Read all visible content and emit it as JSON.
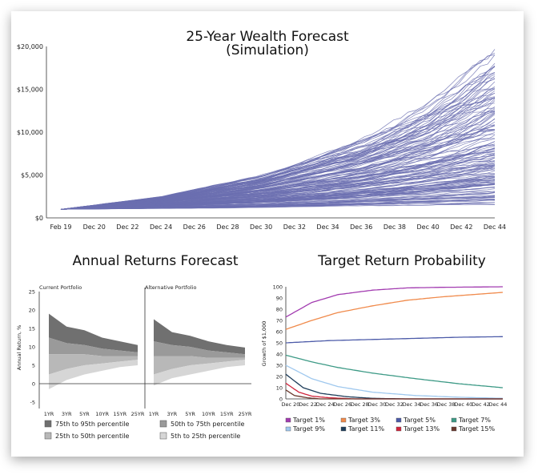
{
  "chart_data": [
    {
      "type": "line",
      "title": "25-Year Wealth Forecast",
      "subtitle": "(Simulation)",
      "x_ticks": [
        "Feb 19",
        "Dec 20",
        "Dec 22",
        "Dec 24",
        "Dec 26",
        "Dec 28",
        "Dec 30",
        "Dec 32",
        "Dec 34",
        "Dec 36",
        "Dec 38",
        "Dec 40",
        "Dec 42",
        "Dec 44"
      ],
      "y_ticks": [
        "$0",
        "$5,000",
        "$10,000",
        "$15,000",
        "$20,000"
      ],
      "ylim": [
        0,
        20000
      ],
      "series_color": "#6b6fb0",
      "simulation_paths": 150,
      "start_value": 1000,
      "envelope": {
        "x": [
          "Feb 19",
          "Dec 24",
          "Dec 30",
          "Dec 36",
          "Dec 40",
          "Dec 44"
        ],
        "upper": [
          1000,
          2500,
          5000,
          9000,
          13000,
          19000
        ],
        "median": [
          1000,
          1900,
          3000,
          4700,
          6200,
          8000
        ],
        "lower": [
          1000,
          1100,
          1200,
          1400,
          1500,
          1600
        ]
      }
    },
    {
      "type": "area",
      "title": "Annual Returns Forecast",
      "ylabel": "Annual Return, %",
      "ylim": [
        -5,
        25
      ],
      "y_ticks": [
        "25",
        "20",
        "15",
        "10",
        "5",
        "0",
        "-5"
      ],
      "panels": [
        "Current Portfolio",
        "Alternative Portfolio"
      ],
      "categories": [
        "1YR",
        "3YR",
        "5YR",
        "10YR",
        "15YR",
        "25YR"
      ],
      "series": [
        {
          "name": "75th to 95th percentile",
          "color": "#707070",
          "current": [
            [
              12.5,
              19
            ],
            [
              11,
              15.5
            ],
            [
              10.5,
              14.5
            ],
            [
              9.5,
              12.5
            ],
            [
              9,
              11.5
            ],
            [
              8.5,
              10.5
            ]
          ],
          "alternative": [
            [
              11.5,
              17.5
            ],
            [
              10.5,
              14
            ],
            [
              10,
              13
            ],
            [
              9,
              11.5
            ],
            [
              8.5,
              10.5
            ],
            [
              8,
              9.8
            ]
          ]
        },
        {
          "name": "50th to 75th percentile",
          "color": "#9a9a9a",
          "current": [
            [
              8,
              12.5
            ],
            [
              8,
              11
            ],
            [
              8,
              10.5
            ],
            [
              7.5,
              9.5
            ],
            [
              7.5,
              9
            ],
            [
              7.5,
              8.5
            ]
          ],
          "alternative": [
            [
              7.5,
              11.5
            ],
            [
              7.5,
              10.5
            ],
            [
              7.5,
              10
            ],
            [
              7,
              9
            ],
            [
              7,
              8.5
            ],
            [
              7,
              8
            ]
          ]
        },
        {
          "name": "25th to 50th percentile",
          "color": "#b8b8b8",
          "current": [
            [
              2.5,
              8
            ],
            [
              4,
              8
            ],
            [
              5,
              8
            ],
            [
              5.5,
              7.5
            ],
            [
              6,
              7.5
            ],
            [
              6.5,
              7.5
            ]
          ],
          "alternative": [
            [
              2.5,
              7.5
            ],
            [
              4,
              7.5
            ],
            [
              5,
              7.5
            ],
            [
              5.5,
              7
            ],
            [
              6,
              7
            ],
            [
              6.5,
              7
            ]
          ]
        },
        {
          "name": "5th to 25th percentile",
          "color": "#d6d6d6",
          "current": [
            [
              -1.5,
              2.5
            ],
            [
              1,
              4
            ],
            [
              2.5,
              5
            ],
            [
              3.5,
              5.5
            ],
            [
              4.5,
              6
            ],
            [
              5,
              6.5
            ]
          ],
          "alternative": [
            [
              -0.5,
              2.5
            ],
            [
              1.5,
              4
            ],
            [
              2.5,
              5
            ],
            [
              3.5,
              5.5
            ],
            [
              4.5,
              6
            ],
            [
              5,
              6.5
            ]
          ]
        }
      ]
    },
    {
      "type": "line",
      "title": "Target Return Probability",
      "ylabel": "Growth of $1,000",
      "ylim": [
        0,
        100
      ],
      "y_ticks": [
        "0",
        "10",
        "20",
        "30",
        "40",
        "50",
        "60",
        "70",
        "80",
        "90",
        "100"
      ],
      "x_ticks": [
        "Dec 20",
        "Dec 22",
        "Dec 24",
        "Dec 26",
        "Dec 28",
        "Dec 30",
        "Dec 32",
        "Dec 34",
        "Dec 36",
        "Dec 38",
        "Dec 40",
        "Dec 42",
        "Dec 44"
      ],
      "series": [
        {
          "name": "Target 1%",
          "color": "#a23bb0",
          "points": [
            [
              0,
              73
            ],
            [
              3,
              86
            ],
            [
              6,
              93
            ],
            [
              10,
              97
            ],
            [
              14,
              99
            ],
            [
              18,
              99.5
            ],
            [
              25,
              100
            ]
          ]
        },
        {
          "name": "Target 3%",
          "color": "#f08a4b",
          "points": [
            [
              0,
              62
            ],
            [
              3,
              70
            ],
            [
              6,
              77
            ],
            [
              10,
              83
            ],
            [
              14,
              88
            ],
            [
              18,
              91
            ],
            [
              25,
              95
            ]
          ]
        },
        {
          "name": "Target 5%",
          "color": "#4b5aa8",
          "points": [
            [
              0,
              50
            ],
            [
              5,
              52
            ],
            [
              10,
              53
            ],
            [
              15,
              54
            ],
            [
              20,
              55
            ],
            [
              25,
              55.5
            ]
          ]
        },
        {
          "name": "Target 7%",
          "color": "#3d9a86",
          "points": [
            [
              0,
              39
            ],
            [
              3,
              33
            ],
            [
              6,
              28
            ],
            [
              10,
              23
            ],
            [
              15,
              18
            ],
            [
              20,
              13.5
            ],
            [
              25,
              10
            ]
          ]
        },
        {
          "name": "Target 9%",
          "color": "#9fc8ee",
          "points": [
            [
              0,
              30
            ],
            [
              3,
              18
            ],
            [
              6,
              11
            ],
            [
              10,
              6
            ],
            [
              15,
              3
            ],
            [
              20,
              1.5
            ],
            [
              25,
              0.5
            ]
          ]
        },
        {
          "name": "Target 11%",
          "color": "#1e3d5a",
          "points": [
            [
              0,
              22
            ],
            [
              2,
              10
            ],
            [
              4,
              5
            ],
            [
              7,
              2
            ],
            [
              10,
              0.5
            ],
            [
              14,
              0
            ]
          ]
        },
        {
          "name": "Target 13%",
          "color": "#d0243c",
          "points": [
            [
              0,
              14
            ],
            [
              1.5,
              6
            ],
            [
              3,
              2.5
            ],
            [
              5,
              1
            ],
            [
              8,
              0
            ]
          ]
        },
        {
          "name": "Target 15%",
          "color": "#6b3a2f",
          "points": [
            [
              0,
              8
            ],
            [
              1,
              3
            ],
            [
              2.5,
              1
            ],
            [
              4,
              0
            ]
          ]
        }
      ]
    }
  ]
}
